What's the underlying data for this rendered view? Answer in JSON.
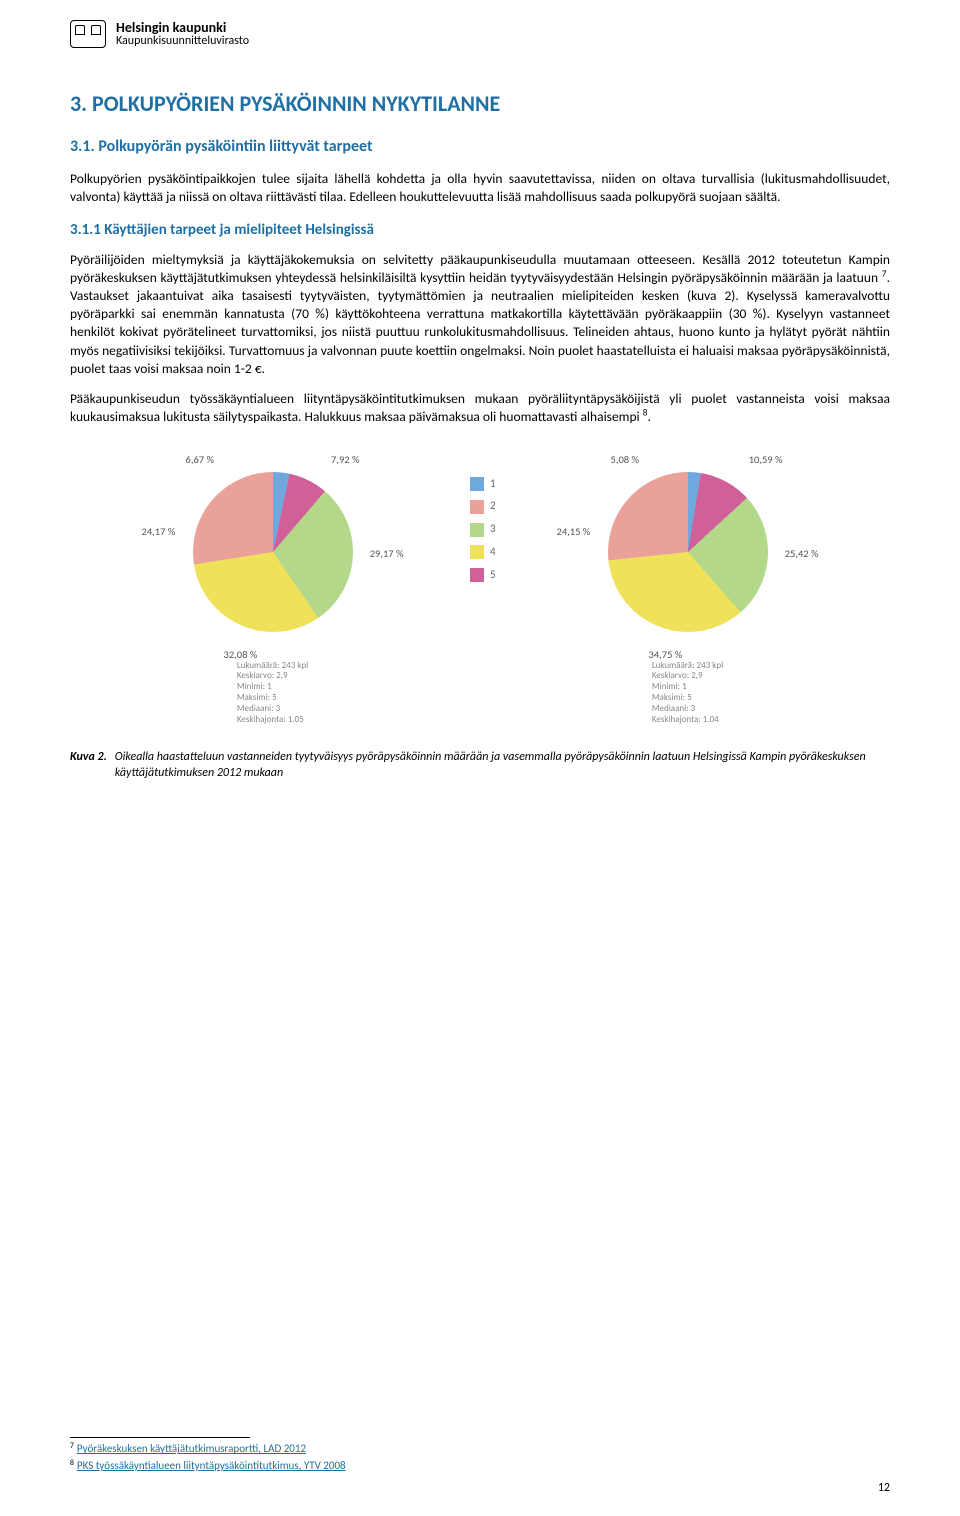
{
  "org": {
    "title": "Helsingin kaupunki",
    "subtitle": "Kaupunkisuunnitteluvirasto"
  },
  "h1": "3. POLKUPYÖRIEN PYSÄKÖINNIN NYKYTILANNE",
  "h2": "3.1. Polkupyörän pysäköintiin liittyvät tarpeet",
  "p1": "Polkupyörien pysäköintipaikkojen tulee sijaita lähellä kohdetta ja olla hyvin saavutettavissa, niiden on oltava turvallisia (lukitusmahdollisuudet, valvonta) käyttää ja niissä on oltava riittävästi tilaa. Edelleen houkuttelevuutta lisää mahdollisuus saada polkupyörä suojaan säältä.",
  "h3": "3.1.1 Käyttäjien tarpeet ja mielipiteet Helsingissä",
  "p2a": "Pyöräilijöiden mieltymyksiä ja käyttäjäkokemuksia on selvitetty pääkaupunkiseudulla muutamaan otteeseen. Kesällä 2012 toteutetun Kampin pyöräkeskuksen käyttäjätutkimuksen yhteydessä helsinkiläisiltä kysyttiin heidän tyytyväisyydestään Helsingin pyöräpysäköinnin määrään ja laatuun ",
  "p2b": ". Vastaukset jakaantuivat aika tasaisesti tyytyväisten, tyytymättömien ja neutraalien mielipiteiden kesken (kuva 2). Kyselyssä kameravalvottu pyöräparkki sai enemmän kannatusta (70 %) käyttökohteena verrattuna matkakortilla käytettävään pyöräkaappiin (30 %). Kyselyyn vastanneet henkilöt kokivat pyörätelineet turvattomiksi, jos niistä puuttuu runkolukitusmahdollisuus. Telineiden ahtaus, huono kunto ja hylätyt pyörät nähtiin myös negatiivisiksi tekijöiksi. Turvattomuus ja valvonnan puute koettiin ongelmaksi. Noin puolet haastatelluista ei haluaisi maksaa pyöräpysäköinnistä, puolet taas voisi maksaa noin 1-2 €.",
  "p3a": "Pääkaupunkiseudun työssäkäyntialueen liityntäpysäköintitutkimuksen mukaan pyöräliityntäpysäköijistä yli puolet vastanneista voisi maksaa kuukausimaksua lukitusta säilytyspaikasta. Halukkuus maksaa päivämaksua oli huomattavasti alhaisempi ",
  "p3b": ".",
  "legend": {
    "items": [
      "1",
      "2",
      "3",
      "4",
      "5"
    ]
  },
  "colors": {
    "c1": "#6fa8dc",
    "c2": "#e9a19a",
    "c3": "#b4d88a",
    "c4": "#efe159",
    "c5": "#d05f9a"
  },
  "chart_left": {
    "slices": [
      {
        "label": "6,67 %",
        "v": 6.67,
        "c": "#6fa8dc"
      },
      {
        "label": "7,92 %",
        "v": 7.92,
        "c": "#d05f9a"
      },
      {
        "label": "24,17 %",
        "v": 24.17,
        "c": "#e9a19a"
      },
      {
        "label": "29,17 %",
        "v": 29.17,
        "c": "#b4d88a"
      },
      {
        "label": "32,08 %",
        "v": 32.08,
        "c": "#efe159"
      }
    ],
    "label_positions": {
      "tl": "6,67 %",
      "tr": "7,92 %",
      "ml": "24,17 %",
      "mr": "29,17 %",
      "bl": "32,08 %"
    },
    "stats": [
      "Lukumäärä: 243 kpl",
      "Keskiarvo: 2,9",
      "Minimi: 1",
      "Maksimi: 5",
      "Mediaani: 3",
      "Keskihajonta: 1.05"
    ]
  },
  "chart_right": {
    "slices": [
      {
        "label": "5,08 %",
        "v": 5.08,
        "c": "#6fa8dc"
      },
      {
        "label": "10,59 %",
        "v": 10.59,
        "c": "#d05f9a"
      },
      {
        "label": "24,15 %",
        "v": 24.15,
        "c": "#e9a19a"
      },
      {
        "label": "25,42 %",
        "v": 25.42,
        "c": "#b4d88a"
      },
      {
        "label": "34,75 %",
        "v": 34.75,
        "c": "#efe159"
      }
    ],
    "label_positions": {
      "tl": "5,08 %",
      "tr": "10,59 %",
      "ml": "24,15 %",
      "mr": "25,42 %",
      "bl": "34,75 %"
    },
    "stats": [
      "Lukumäärä: 243 kpl",
      "Keskiarvo: 2,9",
      "Minimi: 1",
      "Maksimi: 5",
      "Mediaani: 3",
      "Keskihajonta: 1.04"
    ]
  },
  "caption": {
    "label": "Kuva 2.",
    "text": "Oikealla haastatteluun vastanneiden tyytyväisyys pyöräpysäköinnin määrään ja vasemmalla pyöräpysäköinnin laatuun Helsingissä Kampin pyöräkeskuksen käyttäjätutkimuksen 2012 mukaan"
  },
  "footnotes": [
    {
      "n": "7",
      "text": "Pyöräkeskuksen käyttäjätutkimusraportti, LAD 2012"
    },
    {
      "n": "8",
      "text": "PKS työssäkäyntialueen liityntäpysäköintitutkimus, YTV 2008"
    }
  ],
  "pagenum": "12"
}
